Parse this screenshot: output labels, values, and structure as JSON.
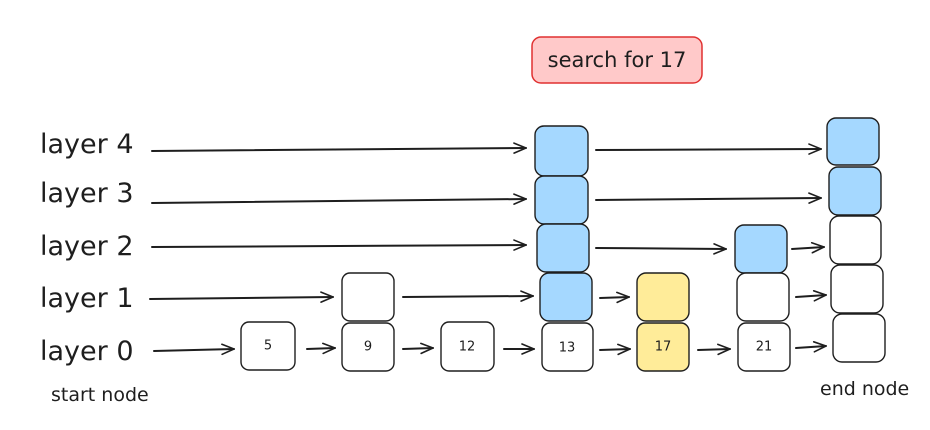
{
  "title": "search for 17",
  "layers": [
    "layer 4",
    "layer 3",
    "layer 2",
    "layer 1",
    "layer 0"
  ],
  "nodes": [
    "5",
    "9",
    "12",
    "13",
    "17",
    "21"
  ],
  "captions": {
    "start": "start node",
    "end": "end node"
  },
  "colors": {
    "stroke": "#1e1e1e",
    "highlight_fill": "#a5d8ff",
    "target_fill": "#ffec99",
    "title_fill": "#ffc9c9",
    "title_stroke": "#e03131"
  }
}
